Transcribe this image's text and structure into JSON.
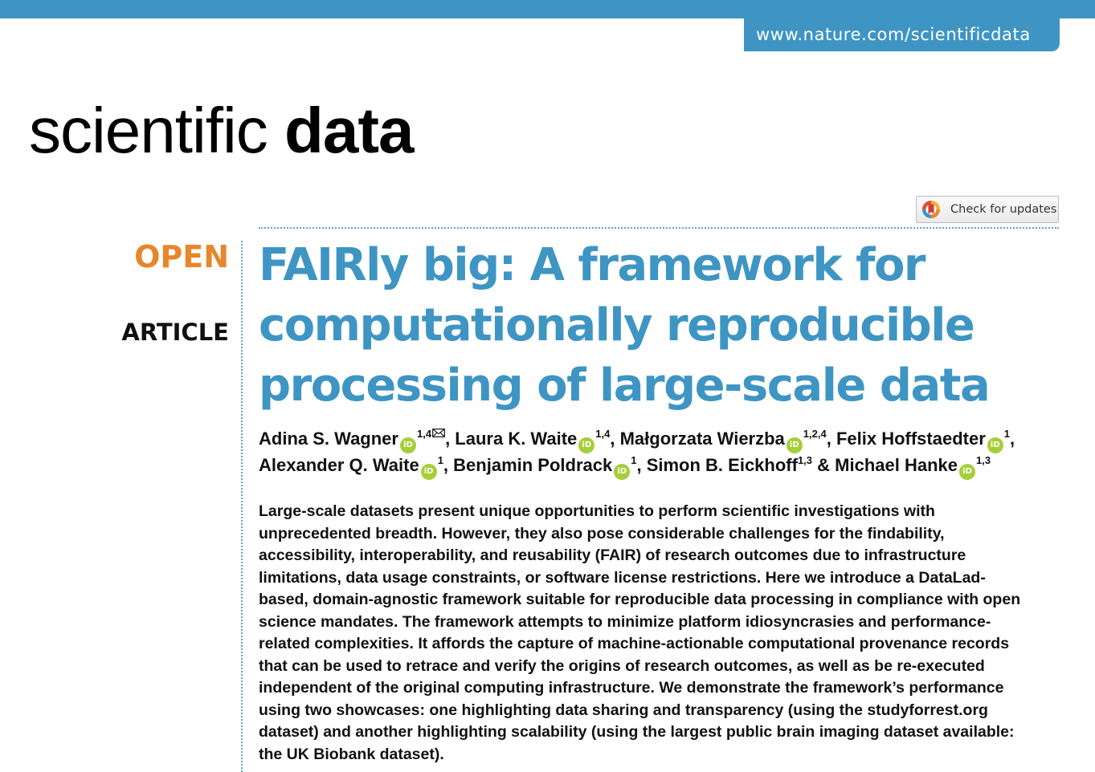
{
  "header": {
    "url": "www.nature.com/scientificdata",
    "journal_light": "scientific",
    "journal_bold": "data",
    "brand_color": "#3e95c3",
    "open_color": "#e8862b"
  },
  "check_updates": {
    "label": "Check for updates",
    "icon": "crossmark-icon"
  },
  "labels": {
    "open": "OPEN",
    "article": "ARTICLE"
  },
  "title": {
    "lines": [
      "FAIRly big: A framework for",
      "computationally reproducible",
      "processing of large-scale data"
    ]
  },
  "authors": {
    "orcid_mark": "iD",
    "line1": [
      {
        "name": "Adina S. Wagner",
        "orcid": true,
        "aff": "1,4",
        "email": true,
        "sep": ", "
      },
      {
        "name": "Laura K. Waite",
        "orcid": true,
        "aff": "1,4",
        "email": false,
        "sep": ", "
      },
      {
        "name": "Małgorzata Wierzba",
        "orcid": true,
        "aff": "1,2,4",
        "email": false,
        "sep": ", "
      },
      {
        "name": "Felix Hoffstaedter",
        "orcid": true,
        "aff": "1",
        "email": false,
        "sep": ","
      }
    ],
    "line2": [
      {
        "name": "Alexander Q. Waite",
        "orcid": true,
        "aff": "1",
        "email": false,
        "sep": ", "
      },
      {
        "name": "Benjamin Poldrack",
        "orcid": true,
        "aff": "1",
        "email": false,
        "sep": ", "
      },
      {
        "name": "Simon B. Eickhoff",
        "orcid": false,
        "aff": "1,3",
        "email": false,
        "sep": " & "
      },
      {
        "name": "Michael Hanke",
        "orcid": true,
        "aff": "1,3",
        "email": false,
        "sep": ""
      }
    ]
  },
  "abstract": {
    "lines": [
      "Large-scale datasets present unique opportunities to perform scientific investigations with",
      "unprecedented breadth. However, they also pose considerable challenges for the findability,",
      "accessibility, interoperability, and reusability (FAIR) of research outcomes due to infrastructure",
      "limitations, data usage constraints, or software license restrictions. Here we introduce a DataLad-",
      "based, domain-agnostic framework suitable for reproducible data processing in compliance with open",
      "science mandates. The framework attempts to minimize platform idiosyncrasies and performance-",
      "related complexities. It affords the capture of machine-actionable computational provenance records",
      "that can be used to retrace and verify the origins of research outcomes, as well as be re-executed",
      "independent of the original computing infrastructure. We demonstrate the framework’s performance",
      "using two showcases: one highlighting data sharing and transparency (using the studyforrest.org",
      "dataset) and another highlighting scalability (using the largest public brain imaging dataset available:",
      "the UK Biobank dataset)."
    ]
  }
}
